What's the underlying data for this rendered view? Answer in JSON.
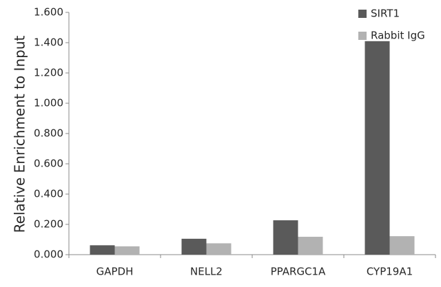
{
  "chart_data": {
    "type": "bar",
    "y_label": "Relative Enrichment to Input",
    "categories": [
      "GAPDH",
      "NELL2",
      "PPARGC1A",
      "CYP19A1"
    ],
    "series": [
      {
        "name": "SIRT1",
        "color": "#5a5a5a",
        "values": [
          0.062,
          0.105,
          0.227,
          1.41
        ]
      },
      {
        "name": "Rabbit IgG",
        "color": "#b2b2b2",
        "values": [
          0.055,
          0.075,
          0.118,
          0.122
        ]
      }
    ],
    "ylim": [
      0,
      1.6
    ],
    "yticks": [
      {
        "value": 0,
        "label": "0.000"
      },
      {
        "value": 0.2,
        "label": "0.200"
      },
      {
        "value": 0.4,
        "label": "0.400"
      },
      {
        "value": 0.6,
        "label": "0.600"
      },
      {
        "value": 0.8,
        "label": "0.800"
      },
      {
        "value": 1.0,
        "label": "1.000"
      },
      {
        "value": 1.2,
        "label": "1.200"
      },
      {
        "value": 1.4,
        "label": "1.400"
      },
      {
        "value": 1.6,
        "label": "1.600"
      }
    ],
    "grid": false,
    "legend": "top-right"
  }
}
